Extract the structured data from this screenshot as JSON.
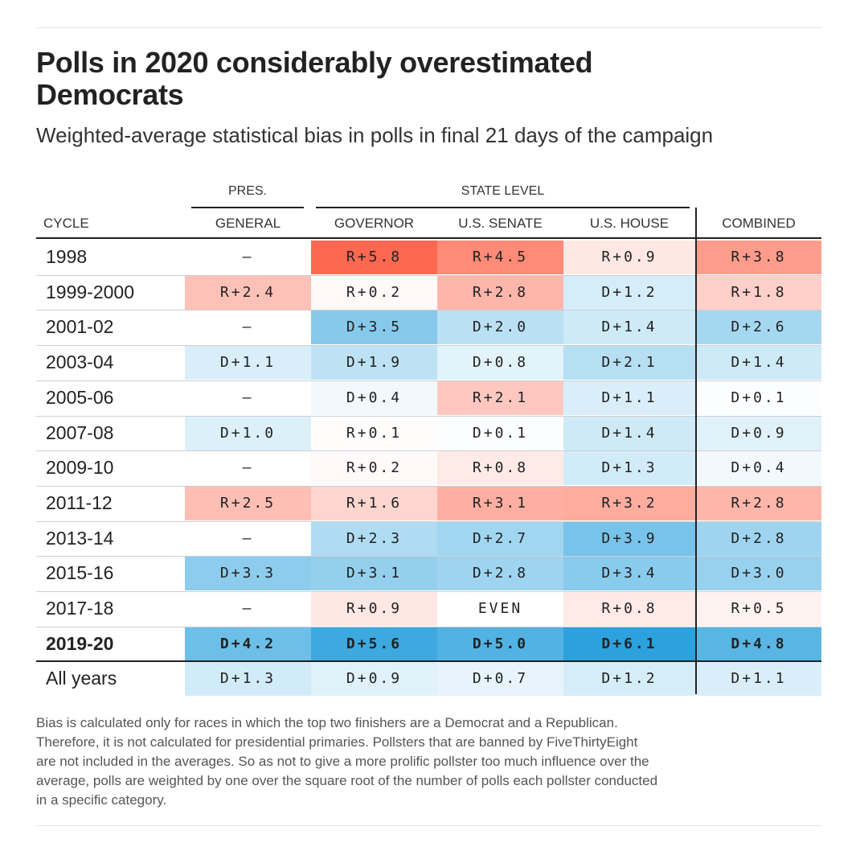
{
  "header": {
    "title_line1": "Polls in 2020 considerably overestimated",
    "title_line2": "Democrats",
    "subtitle": "Weighted-average statistical bias in polls in final 21 days of the campaign"
  },
  "table": {
    "group_labels": {
      "pres": "PRES.",
      "state": "STATE LEVEL"
    },
    "columns": [
      "CYCLE",
      "GENERAL",
      "GOVERNOR",
      "U.S. SENATE",
      "U.S. HOUSE",
      "COMBINED"
    ],
    "rows": [
      {
        "cycle": "1998",
        "cells": [
          "—",
          "R+5.8",
          "R+4.5",
          "R+0.9",
          "R+3.8"
        ]
      },
      {
        "cycle": "1999-2000",
        "cells": [
          "R+2.4",
          "R+0.2",
          "R+2.8",
          "D+1.2",
          "R+1.8"
        ]
      },
      {
        "cycle": "2001-02",
        "cells": [
          "—",
          "D+3.5",
          "D+2.0",
          "D+1.4",
          "D+2.6"
        ]
      },
      {
        "cycle": "2003-04",
        "cells": [
          "D+1.1",
          "D+1.9",
          "D+0.8",
          "D+2.1",
          "D+1.4"
        ]
      },
      {
        "cycle": "2005-06",
        "cells": [
          "—",
          "D+0.4",
          "R+2.1",
          "D+1.1",
          "D+0.1"
        ]
      },
      {
        "cycle": "2007-08",
        "cells": [
          "D+1.0",
          "R+0.1",
          "D+0.1",
          "D+1.4",
          "D+0.9"
        ]
      },
      {
        "cycle": "2009-10",
        "cells": [
          "—",
          "R+0.2",
          "R+0.8",
          "D+1.3",
          "D+0.4"
        ]
      },
      {
        "cycle": "2011-12",
        "cells": [
          "R+2.5",
          "R+1.6",
          "R+3.1",
          "R+3.2",
          "R+2.8"
        ]
      },
      {
        "cycle": "2013-14",
        "cells": [
          "—",
          "D+2.3",
          "D+2.7",
          "D+3.9",
          "D+2.8"
        ]
      },
      {
        "cycle": "2015-16",
        "cells": [
          "D+3.3",
          "D+3.1",
          "D+2.8",
          "D+3.4",
          "D+3.0"
        ]
      },
      {
        "cycle": "2017-18",
        "cells": [
          "—",
          "R+0.9",
          "EVEN",
          "R+0.8",
          "R+0.5"
        ]
      },
      {
        "cycle": "2019-20",
        "cells": [
          "D+4.2",
          "D+5.6",
          "D+5.0",
          "D+6.1",
          "D+4.8"
        ],
        "highlight": true
      },
      {
        "cycle": "All years",
        "cells": [
          "D+1.3",
          "D+0.9",
          "D+0.7",
          "D+1.2",
          "D+1.1"
        ]
      }
    ]
  },
  "chart_data": {
    "type": "heatmap",
    "title": "Polls in 2020 considerably overestimated Democrats",
    "subtitle": "Weighted-average statistical bias in polls in final 21 days of the campaign",
    "x": [
      "GENERAL",
      "GOVERNOR",
      "U.S. SENATE",
      "U.S. HOUSE",
      "COMBINED"
    ],
    "y": [
      "1998",
      "1999-2000",
      "2001-02",
      "2003-04",
      "2005-06",
      "2007-08",
      "2009-10",
      "2011-12",
      "2013-14",
      "2015-16",
      "2017-18",
      "2019-20",
      "All years"
    ],
    "values": [
      [
        null,
        5.8,
        4.5,
        0.9,
        3.8
      ],
      [
        2.4,
        0.2,
        2.8,
        -1.2,
        1.8
      ],
      [
        null,
        -3.5,
        -2.0,
        -1.4,
        -2.6
      ],
      [
        -1.1,
        -1.9,
        -0.8,
        -2.1,
        -1.4
      ],
      [
        null,
        -0.4,
        2.1,
        -1.1,
        -0.1
      ],
      [
        -1.0,
        0.1,
        -0.1,
        -1.4,
        -0.9
      ],
      [
        null,
        0.2,
        0.8,
        -1.3,
        -0.4
      ],
      [
        2.5,
        1.6,
        3.1,
        3.2,
        2.8
      ],
      [
        null,
        -2.3,
        -2.7,
        -3.9,
        -2.8
      ],
      [
        -3.3,
        -3.1,
        -2.8,
        -3.4,
        -3.0
      ],
      [
        null,
        0.9,
        0.0,
        0.8,
        0.5
      ],
      [
        -4.2,
        -5.6,
        -5.0,
        -6.1,
        -4.8
      ],
      [
        -1.3,
        -0.9,
        -0.7,
        -1.2,
        -1.1
      ]
    ],
    "colors": {
      "republican": "#fd5e44",
      "democrat": "#28a0dc",
      "neutral": "#ffffff"
    }
  },
  "note": [
    "Bias is calculated only for races in which the top two finishers are a Democrat and a Republican.",
    "Therefore, it is not calculated for presidential primaries. Pollsters that are banned by FiveThirtyEight",
    "are not included in the averages. So as not to give a more prolific pollster too much influence over the",
    "average, polls are weighted by one over the square root of the number of polls each pollster conducted",
    "in a specific category."
  ]
}
